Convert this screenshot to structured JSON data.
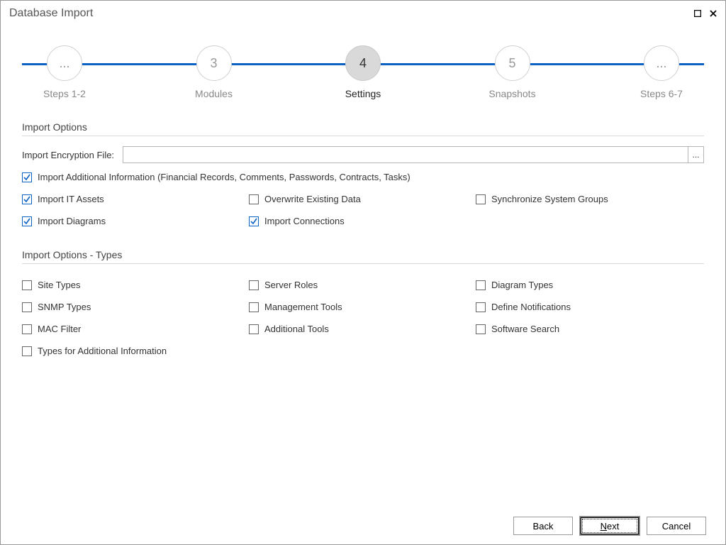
{
  "window": {
    "title": "Database Import"
  },
  "wizard": {
    "line_color": "#0b62c4",
    "steps": [
      {
        "bubble": "...",
        "label": "Steps 1-2",
        "active": false
      },
      {
        "bubble": "3",
        "label": "Modules",
        "active": false
      },
      {
        "bubble": "4",
        "label": "Settings",
        "active": true
      },
      {
        "bubble": "5",
        "label": "Snapshots",
        "active": false
      },
      {
        "bubble": "...",
        "label": "Steps 6-7",
        "active": false
      }
    ]
  },
  "sections": {
    "import_options": {
      "title": "Import Options",
      "encryption_label": "Import Encryption File:",
      "encryption_value": "",
      "browse_glyph": "...",
      "additional_info": {
        "label": "Import Additional Information (Financial Records, Comments, Passwords, Contracts, Tasks)",
        "checked": true
      },
      "grid": [
        {
          "label": "Import IT Assets",
          "checked": true
        },
        {
          "label": "Overwrite Existing Data",
          "checked": false
        },
        {
          "label": "Synchronize System Groups",
          "checked": false
        },
        {
          "label": "Import Diagrams",
          "checked": true
        },
        {
          "label": "Import Connections",
          "checked": true
        }
      ]
    },
    "types": {
      "title": "Import Options - Types",
      "grid": [
        {
          "label": "Site Types",
          "checked": false
        },
        {
          "label": "Server Roles",
          "checked": false
        },
        {
          "label": "Diagram Types",
          "checked": false
        },
        {
          "label": "SNMP Types",
          "checked": false
        },
        {
          "label": "Management Tools",
          "checked": false
        },
        {
          "label": "Define Notifications",
          "checked": false
        },
        {
          "label": "MAC Filter",
          "checked": false
        },
        {
          "label": "Additional Tools",
          "checked": false
        },
        {
          "label": "Software Search",
          "checked": false
        },
        {
          "label": "Types for Additional Information",
          "checked": false
        }
      ]
    }
  },
  "footer": {
    "back": "Back",
    "next_prefix": "",
    "next_accel": "N",
    "next_suffix": "ext",
    "cancel": "Cancel"
  },
  "colors": {
    "accent": "#0b62c4",
    "text": "#333333",
    "muted": "#888888",
    "border": "#d9d9d9"
  }
}
